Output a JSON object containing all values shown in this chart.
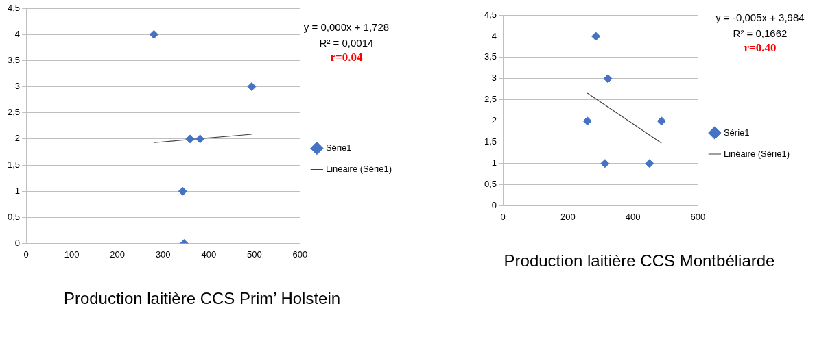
{
  "chart_data": [
    {
      "type": "scatter",
      "title": "Production laitière CCS Prim’ Holstein",
      "annotations": [
        "y = 0,000x + 1,728",
        "R² = 0,0014",
        "r=0.04"
      ],
      "series": [
        {
          "name": "Série1",
          "type": "scatter",
          "marker": "diamond",
          "color": "#4472c4",
          "x": [
            280,
            494,
            359,
            381,
            343,
            346
          ],
          "values": [
            4,
            3,
            2,
            2,
            1,
            0
          ]
        },
        {
          "name": "Linéaire (Série1)",
          "type": "line",
          "marker": "none",
          "color": "#404040",
          "x": [
            280,
            494
          ],
          "values": [
            1.93,
            2.09
          ]
        }
      ],
      "xlim": [
        0,
        600
      ],
      "xticks": [
        0,
        100,
        200,
        300,
        400,
        500,
        600
      ],
      "ylim": [
        0,
        4.5
      ],
      "yticks": [
        0,
        {
          "value": 0.5,
          "label": "0,5"
        },
        1,
        {
          "value": 1.5,
          "label": "1,5"
        },
        2,
        {
          "value": 2.5,
          "label": "2,5"
        },
        3,
        {
          "value": 3.5,
          "label": "3,5"
        },
        4,
        {
          "value": 4.5,
          "label": "4,5"
        }
      ],
      "grid": "y",
      "legend": "right"
    },
    {
      "type": "scatter",
      "title": "Production laitière CCS Montbéliarde",
      "annotations": [
        "y = -0,005x + 3,984",
        "R² = 0,1662",
        "r=0.40"
      ],
      "series": [
        {
          "name": "Série1",
          "type": "scatter",
          "marker": "diamond",
          "color": "#4472c4",
          "x": [
            286,
            323,
            260,
            488,
            314,
            451
          ],
          "values": [
            4,
            3,
            2,
            2,
            1,
            1
          ]
        },
        {
          "name": "Linéaire (Série1)",
          "type": "line",
          "marker": "none",
          "color": "#404040",
          "x": [
            260,
            488
          ],
          "values": [
            2.66,
            1.48
          ]
        }
      ],
      "xlim": [
        0,
        600
      ],
      "xticks": [
        0,
        200,
        400,
        600
      ],
      "ylim": [
        0,
        4.5
      ],
      "yticks": [
        0,
        {
          "value": 0.5,
          "label": "0,5"
        },
        1,
        {
          "value": 1.5,
          "label": "1,5"
        },
        2,
        {
          "value": 2.5,
          "label": "2,5"
        },
        3,
        {
          "value": 3.5,
          "label": "3,5"
        },
        4,
        {
          "value": 4.5,
          "label": "4,5"
        }
      ],
      "grid": "y",
      "legend": "right"
    }
  ]
}
